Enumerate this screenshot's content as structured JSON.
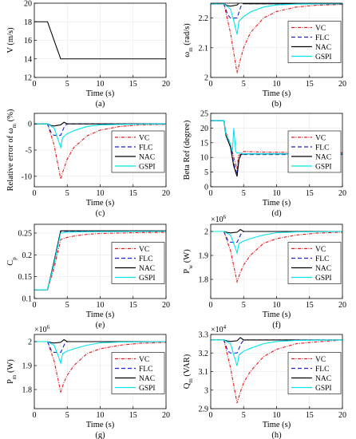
{
  "chart_data": [
    {
      "id": "a",
      "type": "line",
      "caption": "(a)",
      "xlabel": "Time (s)",
      "ylabel": "V (m/s)",
      "xlim": [
        0,
        20
      ],
      "ylim": [
        12,
        20
      ],
      "xticks": [
        0,
        5,
        10,
        15,
        20
      ],
      "yticks": [
        12,
        14,
        16,
        18,
        20
      ],
      "legend": null,
      "series": [
        {
          "color": "#000000",
          "dash": "",
          "x": [
            0,
            2,
            4,
            20
          ],
          "y": [
            18,
            18,
            14,
            14
          ]
        }
      ]
    },
    {
      "id": "b",
      "type": "line",
      "caption": "(b)",
      "xlabel": "Time (s)",
      "ylabel": "ω_m (rad/s)",
      "xlim": [
        0,
        20
      ],
      "ylim": [
        2.0,
        2.25
      ],
      "xticks": [
        0,
        5,
        10,
        15,
        20
      ],
      "yticks": [
        2,
        2.1,
        2.2
      ],
      "legend": "right",
      "series": [
        {
          "name": "VC",
          "color": "#e31a1c",
          "dash": "4,1.5,1,1.5",
          "x": [
            0,
            2,
            3,
            4,
            4.5,
            5,
            6,
            8,
            10,
            13,
            16,
            20
          ],
          "y": [
            2.248,
            2.248,
            2.15,
            2.015,
            2.06,
            2.1,
            2.15,
            2.2,
            2.222,
            2.237,
            2.243,
            2.246
          ]
        },
        {
          "name": "FLC",
          "color": "#1f1fcf",
          "dash": "5,3",
          "x": [
            0,
            2,
            2.6,
            3,
            4,
            4.6,
            5,
            5.5,
            20
          ],
          "y": [
            2.248,
            2.248,
            2.21,
            2.2,
            2.2,
            2.24,
            2.249,
            2.248,
            2.248
          ]
        },
        {
          "name": "NAC",
          "color": "#000000",
          "dash": "",
          "x": [
            0,
            2,
            2.5,
            3,
            4,
            4.5,
            5,
            20
          ],
          "y": [
            2.248,
            2.248,
            2.242,
            2.24,
            2.244,
            2.255,
            2.248,
            2.248
          ]
        },
        {
          "name": "GSPI",
          "color": "#00e5ee",
          "dash": "",
          "x": [
            0,
            2,
            3,
            3.5,
            4,
            4.3,
            5,
            6,
            8,
            10,
            13,
            20
          ],
          "y": [
            2.248,
            2.248,
            2.23,
            2.19,
            2.145,
            2.19,
            2.205,
            2.22,
            2.237,
            2.244,
            2.247,
            2.248
          ]
        }
      ]
    },
    {
      "id": "c",
      "type": "line",
      "caption": "(c)",
      "xlabel": "Time (s)",
      "ylabel": "Relative error of ω_m (%)",
      "xlim": [
        0,
        20
      ],
      "ylim": [
        -12,
        2
      ],
      "xticks": [
        0,
        5,
        10,
        15,
        20
      ],
      "yticks": [
        -10,
        -5,
        0
      ],
      "legend": "right",
      "series": [
        {
          "name": "VC",
          "color": "#e31a1c",
          "dash": "4,1.5,1,1.5",
          "x": [
            0,
            2,
            3,
            4,
            4.5,
            5,
            6,
            8,
            10,
            13,
            16,
            20
          ],
          "y": [
            0,
            0,
            -4,
            -10.5,
            -8.5,
            -6.7,
            -4.5,
            -2.3,
            -1.2,
            -0.5,
            -0.2,
            -0.1
          ]
        },
        {
          "name": "FLC",
          "color": "#1f1fcf",
          "dash": "5,3",
          "x": [
            0,
            2,
            2.6,
            3,
            4,
            4.6,
            5,
            5.5,
            20
          ],
          "y": [
            0,
            0,
            -1.8,
            -2.2,
            -2.2,
            -0.4,
            0,
            0,
            0
          ]
        },
        {
          "name": "NAC",
          "color": "#000000",
          "dash": "",
          "x": [
            0,
            2,
            2.5,
            3,
            4,
            4.5,
            5,
            20
          ],
          "y": [
            0,
            0,
            -0.3,
            -0.4,
            -0.2,
            0.3,
            0,
            0
          ]
        },
        {
          "name": "GSPI",
          "color": "#00e5ee",
          "dash": "",
          "x": [
            0,
            2,
            3,
            3.5,
            4,
            4.3,
            5,
            6,
            8,
            10,
            13,
            20
          ],
          "y": [
            0,
            0,
            -0.8,
            -2.6,
            -4.5,
            -2.6,
            -1.9,
            -1.3,
            -0.5,
            -0.2,
            -0.1,
            0
          ]
        }
      ]
    },
    {
      "id": "d",
      "type": "line",
      "caption": "(d)",
      "xlabel": "Time (s)",
      "ylabel": "Beta Ref (degree)",
      "xlim": [
        0,
        20
      ],
      "ylim": [
        0,
        25
      ],
      "xticks": [
        0,
        5,
        10,
        15,
        20
      ],
      "yticks": [
        0,
        5,
        10,
        15,
        20,
        25
      ],
      "legend": "right",
      "series": [
        {
          "name": "VC",
          "color": "#e31a1c",
          "dash": "4,1.5,1,1.5",
          "x": [
            0,
            2,
            2.3,
            3,
            3.5,
            4,
            4.2,
            5,
            8,
            12,
            16,
            20
          ],
          "y": [
            22.5,
            22.5,
            18.5,
            14.5,
            10,
            6,
            10.5,
            12,
            11.8,
            11.7,
            11.6,
            11.6
          ]
        },
        {
          "name": "FLC",
          "color": "#1f1fcf",
          "dash": "5,3",
          "x": [
            0,
            2,
            2.3,
            3,
            3.5,
            4,
            4.3,
            4.6,
            5,
            20
          ],
          "y": [
            22.5,
            22.5,
            18,
            14,
            8,
            4.5,
            9.5,
            10.8,
            11,
            11
          ]
        },
        {
          "name": "NAC",
          "color": "#000000",
          "dash": "",
          "x": [
            0,
            2,
            2.3,
            3,
            3.5,
            4,
            4.3,
            4.6,
            5,
            20
          ],
          "y": [
            22.5,
            22.5,
            17.5,
            13.5,
            7,
            3.5,
            9.5,
            11,
            11.2,
            11.2
          ]
        },
        {
          "name": "GSPI",
          "color": "#00e5ee",
          "dash": "",
          "x": [
            0,
            2,
            2.3,
            3,
            3.3,
            3.5,
            3.8,
            4,
            4.3,
            5,
            20
          ],
          "y": [
            22.5,
            22.5,
            18,
            14.5,
            12,
            20,
            12,
            11.5,
            11.5,
            11.2,
            11.2
          ]
        }
      ]
    },
    {
      "id": "e",
      "type": "line",
      "caption": "(e)",
      "xlabel": "Time (s)",
      "ylabel": "C_p",
      "xlim": [
        0,
        20
      ],
      "ylim": [
        0.1,
        0.27
      ],
      "xticks": [
        0,
        5,
        10,
        15,
        20
      ],
      "yticks": [
        0.1,
        0.15,
        0.2,
        0.25
      ],
      "legend": "right",
      "series": [
        {
          "name": "VC",
          "color": "#e31a1c",
          "dash": "4,1.5,1,1.5",
          "x": [
            0,
            2,
            3,
            4,
            5,
            6,
            8,
            10,
            13,
            16,
            20
          ],
          "y": [
            0.12,
            0.12,
            0.17,
            0.235,
            0.24,
            0.243,
            0.247,
            0.249,
            0.25,
            0.251,
            0.252
          ]
        },
        {
          "name": "FLC",
          "color": "#1f1fcf",
          "dash": "5,3",
          "x": [
            0,
            2,
            3,
            4,
            5,
            20
          ],
          "y": [
            0.12,
            0.12,
            0.18,
            0.254,
            0.254,
            0.254
          ]
        },
        {
          "name": "NAC",
          "color": "#000000",
          "dash": "",
          "x": [
            0,
            2,
            3,
            4,
            5,
            20
          ],
          "y": [
            0.12,
            0.12,
            0.185,
            0.255,
            0.255,
            0.255
          ]
        },
        {
          "name": "GSPI",
          "color": "#00e5ee",
          "dash": "",
          "x": [
            0,
            2,
            3,
            4,
            5,
            8,
            20
          ],
          "y": [
            0.12,
            0.12,
            0.18,
            0.25,
            0.252,
            0.253,
            0.254
          ]
        }
      ]
    },
    {
      "id": "f",
      "type": "line",
      "caption": "(f)",
      "xlabel": "Time (s)",
      "ylabel": "P_w (W)",
      "exponent": "×10^6",
      "xlim": [
        0,
        20
      ],
      "ylim": [
        1.72,
        2.03
      ],
      "xticks": [
        0,
        5,
        10,
        15,
        20
      ],
      "yticks": [
        1.8,
        1.9,
        2
      ],
      "legend": "right",
      "series": [
        {
          "name": "VC",
          "color": "#e31a1c",
          "dash": "4,1.5,1,1.5",
          "x": [
            0,
            2,
            3,
            4,
            4.5,
            5,
            6,
            8,
            10,
            13,
            16,
            20
          ],
          "y": [
            2.0,
            2.0,
            1.92,
            1.79,
            1.83,
            1.86,
            1.9,
            1.95,
            1.97,
            1.985,
            1.993,
            1.997
          ]
        },
        {
          "name": "FLC",
          "color": "#1f1fcf",
          "dash": "5,3",
          "x": [
            0,
            2,
            2.6,
            3,
            4,
            4.6,
            5,
            5.5,
            20
          ],
          "y": [
            2.0,
            2.0,
            1.962,
            1.955,
            1.955,
            1.99,
            2.0,
            2.0,
            2.0
          ]
        },
        {
          "name": "NAC",
          "color": "#000000",
          "dash": "",
          "x": [
            0,
            2,
            2.5,
            3,
            4,
            4.5,
            5,
            20
          ],
          "y": [
            2.0,
            2.0,
            1.996,
            1.994,
            1.997,
            2.008,
            2.0,
            2.0
          ]
        },
        {
          "name": "GSPI",
          "color": "#00e5ee",
          "dash": "",
          "x": [
            0,
            2,
            3,
            3.5,
            4,
            4.3,
            5,
            6,
            8,
            10,
            13,
            20
          ],
          "y": [
            2.0,
            2.0,
            1.985,
            1.95,
            1.91,
            1.95,
            1.96,
            1.97,
            1.985,
            1.995,
            1.998,
            2.0
          ]
        }
      ]
    },
    {
      "id": "g",
      "type": "line",
      "caption": "(g)",
      "xlabel": "Time (s)",
      "ylabel": "P_m (W)",
      "exponent": "×10^6",
      "xlim": [
        0,
        20
      ],
      "ylim": [
        1.72,
        2.03
      ],
      "xticks": [
        0,
        5,
        10,
        15,
        20
      ],
      "yticks": [
        1.8,
        1.9,
        2
      ],
      "legend": "right",
      "series": [
        {
          "name": "VC",
          "color": "#e31a1c",
          "dash": "4,1.5,1,1.5",
          "x": [
            0,
            2,
            3,
            4,
            4.5,
            5,
            6,
            8,
            10,
            13,
            16,
            20
          ],
          "y": [
            2.0,
            2.0,
            1.92,
            1.79,
            1.83,
            1.86,
            1.9,
            1.95,
            1.97,
            1.985,
            1.993,
            1.997
          ]
        },
        {
          "name": "FLC",
          "color": "#1f1fcf",
          "dash": "5,3",
          "x": [
            0,
            2,
            2.6,
            3,
            4,
            4.6,
            5,
            5.5,
            20
          ],
          "y": [
            2.0,
            2.0,
            1.962,
            1.955,
            1.955,
            1.99,
            2.0,
            2.0,
            2.0
          ]
        },
        {
          "name": "NAC",
          "color": "#000000",
          "dash": "",
          "x": [
            0,
            2,
            2.5,
            3,
            4,
            4.5,
            5,
            20
          ],
          "y": [
            2.0,
            2.0,
            1.996,
            1.994,
            1.997,
            2.008,
            2.0,
            2.0
          ]
        },
        {
          "name": "GSPI",
          "color": "#00e5ee",
          "dash": "",
          "x": [
            0,
            2,
            3,
            3.5,
            4,
            4.3,
            5,
            6,
            8,
            10,
            13,
            20
          ],
          "y": [
            2.0,
            2.0,
            1.985,
            1.95,
            1.91,
            1.95,
            1.96,
            1.97,
            1.985,
            1.995,
            1.998,
            2.0
          ]
        }
      ]
    },
    {
      "id": "h",
      "type": "line",
      "caption": "(h)",
      "xlabel": "Time (s)",
      "ylabel": "Q_m (VAR)",
      "exponent": "×10^4",
      "xlim": [
        0,
        20
      ],
      "ylim": [
        2.9,
        3.3
      ],
      "xticks": [
        0,
        5,
        10,
        15,
        20
      ],
      "yticks": [
        2.9,
        3,
        3.1,
        3.2,
        3.3
      ],
      "legend": "right",
      "series": [
        {
          "name": "VC",
          "color": "#e31a1c",
          "dash": "4,1.5,1,1.5",
          "x": [
            0,
            2,
            3,
            4,
            4.5,
            5,
            6,
            8,
            10,
            13,
            16,
            20
          ],
          "y": [
            3.27,
            3.27,
            3.12,
            2.93,
            2.99,
            3.04,
            3.1,
            3.18,
            3.22,
            3.25,
            3.26,
            3.27
          ]
        },
        {
          "name": "FLC",
          "color": "#1f1fcf",
          "dash": "5,3",
          "x": [
            0,
            2,
            2.6,
            3,
            4,
            4.6,
            5,
            5.5,
            20
          ],
          "y": [
            3.27,
            3.27,
            3.21,
            3.2,
            3.2,
            3.25,
            3.27,
            3.27,
            3.27
          ]
        },
        {
          "name": "NAC",
          "color": "#000000",
          "dash": "",
          "x": [
            0,
            2,
            2.5,
            3,
            4,
            4.5,
            5,
            20
          ],
          "y": [
            3.27,
            3.27,
            3.265,
            3.262,
            3.266,
            3.283,
            3.27,
            3.27
          ]
        },
        {
          "name": "GSPI",
          "color": "#00e5ee",
          "dash": "",
          "x": [
            0,
            2,
            3,
            3.5,
            4,
            4.3,
            5,
            6,
            8,
            10,
            13,
            20
          ],
          "y": [
            3.27,
            3.27,
            3.25,
            3.19,
            3.13,
            3.19,
            3.21,
            3.225,
            3.25,
            3.262,
            3.268,
            3.27
          ]
        }
      ]
    }
  ]
}
